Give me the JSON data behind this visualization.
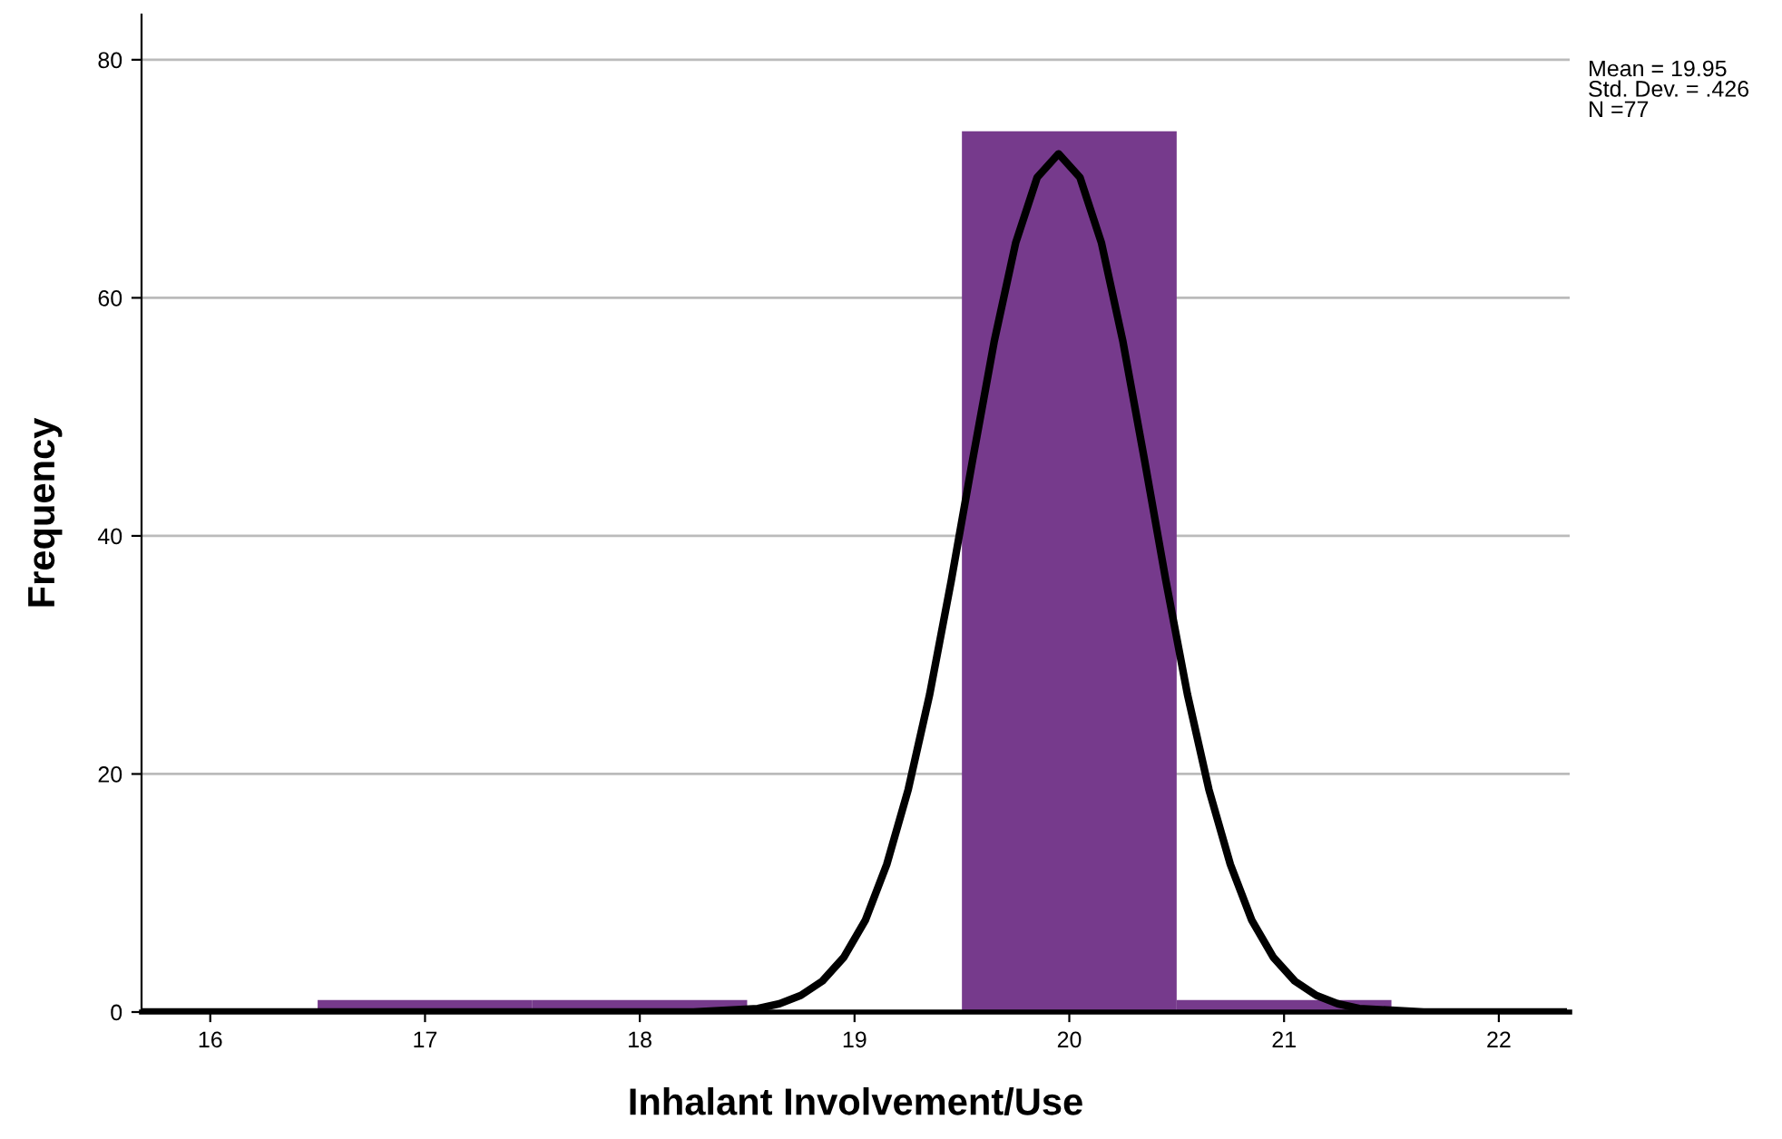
{
  "chart_data": {
    "type": "histogram",
    "xlabel": "Inhalant Involvement/Use",
    "ylabel": "Frequency",
    "bins": [
      16.5,
      17.5,
      18.5,
      19.5,
      20.5,
      21.5
    ],
    "values": [
      1,
      1,
      0,
      74,
      1
    ],
    "color": "#763a8c",
    "series": [
      {
        "type": "line",
        "color": "#000000",
        "x": [
          15.7,
          18.25,
          18.55,
          18.65,
          18.75,
          18.85,
          18.95,
          19.05,
          19.15,
          19.25,
          19.35,
          19.45,
          19.55,
          19.65,
          19.75,
          19.85,
          19.95,
          20.05,
          20.15,
          20.25,
          20.35,
          20.45,
          20.55,
          20.65,
          20.75,
          20.85,
          20.95,
          21.05,
          21.15,
          21.25,
          21.35,
          21.65,
          22.3
        ],
        "values": [
          0,
          0,
          0.3,
          0.7,
          1.4,
          2.6,
          4.6,
          7.7,
          12.4,
          18.7,
          26.7,
          36.2,
          46.4,
          56.3,
          64.6,
          70.1,
          72.1,
          70.1,
          64.6,
          56.3,
          46.4,
          36.2,
          26.7,
          18.7,
          12.4,
          7.7,
          4.6,
          2.6,
          1.4,
          0.7,
          0.3,
          0,
          0
        ]
      }
    ],
    "xlim": [
      15.68,
      22.33
    ],
    "xticks": [
      16,
      17,
      18,
      19,
      20,
      21,
      22
    ],
    "ylim": [
      0,
      83.8
    ],
    "yticks": [
      0,
      20,
      40,
      60,
      80
    ],
    "grid": "y",
    "annotations": [
      "Mean = 19.95\nStd. Dev. = .426\nN =77"
    ]
  }
}
